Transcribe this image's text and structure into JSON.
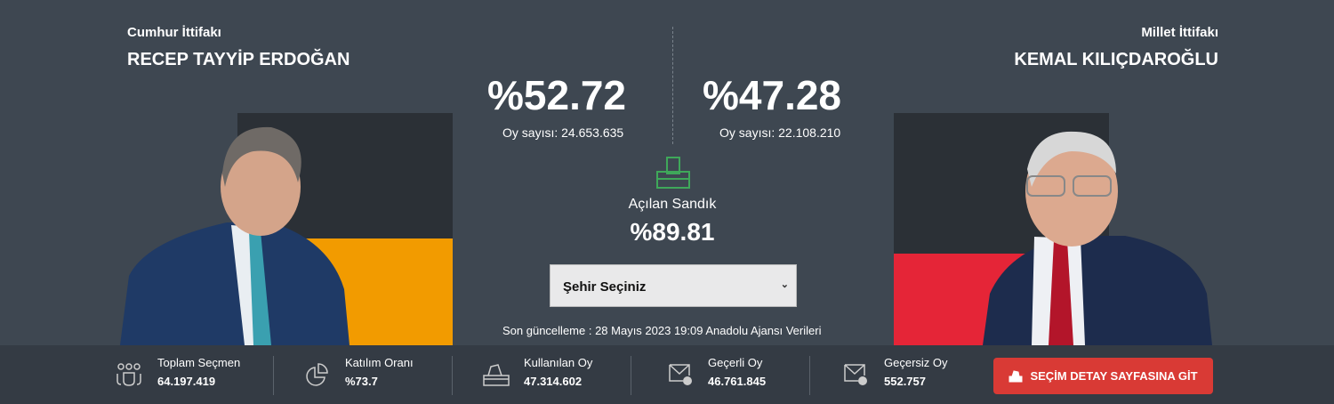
{
  "left": {
    "alliance": "Cumhur İttifakı",
    "name": "RECEP TAYYİP ERDOĞAN",
    "percent": "%52.72",
    "votes": "Oy sayısı: 24.653.635",
    "color": "#f29b00",
    "fill_percent": 52.72
  },
  "right": {
    "alliance": "Millet İttifakı",
    "name": "KEMAL KILIÇDAROĞLU",
    "percent": "%47.28",
    "votes": "Oy sayısı: 22.108.210",
    "color": "#e52537",
    "fill_percent": 47.28
  },
  "center": {
    "ballot_icon": "ballot-box-icon",
    "opened_label": "Açılan Sandık",
    "opened_value": "%89.81",
    "select_value": "Şehir Seçiniz",
    "updated": "Son güncelleme : 28 Mayıs 2023 19:09 Anadolu Ajansı Verileri"
  },
  "stats": [
    {
      "icon": "users-icon",
      "label": "Toplam Seçmen",
      "value": "64.197.419"
    },
    {
      "icon": "pie-chart-icon",
      "label": "Katılım Oranı",
      "value": "%73.7"
    },
    {
      "icon": "ballot-box-icon",
      "label": "Kullanılan Oy",
      "value": "47.314.602"
    },
    {
      "icon": "envelope-check-icon",
      "label": "Geçerli Oy",
      "value": "46.761.845"
    },
    {
      "icon": "envelope-x-icon",
      "label": "Geçersiz Oy",
      "value": "552.757"
    }
  ],
  "button": {
    "label": "SEÇİM DETAY SAYFASINA GİT",
    "color": "#d93a35"
  }
}
